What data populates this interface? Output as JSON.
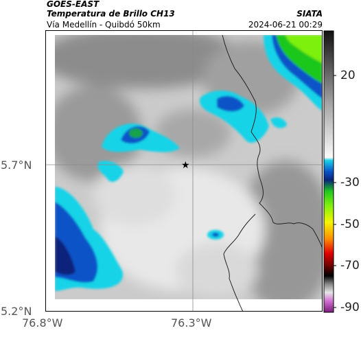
{
  "header": {
    "title_line1": "GOES-EAST",
    "title_line2": "Temperatura de Brillo CH13",
    "subtitle": "Vía Medellín - Quibdó 50km",
    "credit": "SIATA",
    "datetime": "2024-06-21 00:29"
  },
  "map": {
    "lon_ticks": [
      "76.8°W",
      "76.3°W"
    ],
    "lat_ticks": [
      "5.7°N",
      "5.2°N"
    ],
    "marker": "star-marker",
    "colors": {
      "cyan": "#19d3e8",
      "blue": "#0a52c8",
      "navy": "#08247a",
      "green": "#1fc71f",
      "lime": "#7ef00f"
    }
  },
  "colorbar": {
    "ticks": [
      "20",
      "-30",
      "-50",
      "-70",
      "-90"
    ]
  }
}
